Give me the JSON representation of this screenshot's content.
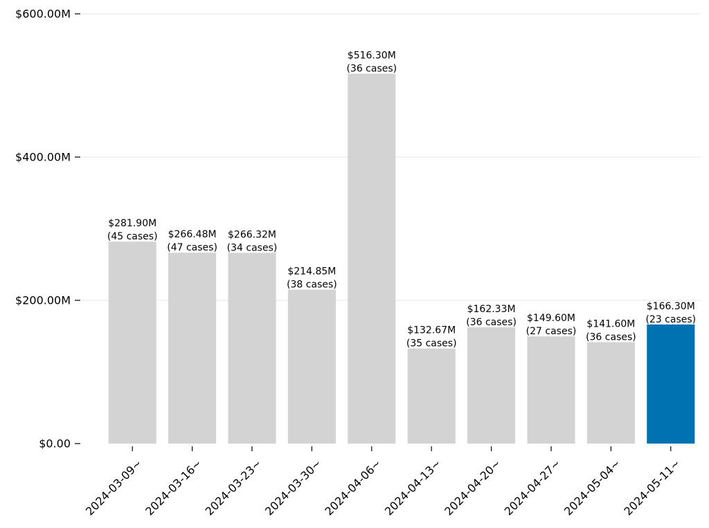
{
  "chart_data": {
    "type": "bar",
    "categories": [
      "2024-03-09~",
      "2024-03-16~",
      "2024-03-23~",
      "2024-03-30~",
      "2024-04-06~",
      "2024-04-13~",
      "2024-04-20~",
      "2024-04-27~",
      "2024-05-04~",
      "2024-05-11~"
    ],
    "values": [
      281.9,
      266.48,
      266.32,
      214.85,
      516.3,
      132.67,
      162.33,
      149.6,
      141.6,
      166.3
    ],
    "cases": [
      45,
      47,
      34,
      38,
      36,
      35,
      36,
      27,
      36,
      23
    ],
    "value_labels": [
      "$281.90M",
      "$266.48M",
      "$266.32M",
      "$214.85M",
      "$516.30M",
      "$132.67M",
      "$162.33M",
      "$149.60M",
      "$141.60M",
      "$166.30M"
    ],
    "case_labels": [
      "(45 cases)",
      "(47 cases)",
      "(34 cases)",
      "(38 cases)",
      "(36 cases)",
      "(35 cases)",
      "(36 cases)",
      "(27 cases)",
      "(36 cases)",
      "(23 cases)"
    ],
    "ylim": [
      0,
      600
    ],
    "yticks": [
      0,
      200,
      400,
      600
    ],
    "ytick_labels": [
      "$0.00",
      "$200.00M",
      "$400.00M",
      "$600.00M"
    ],
    "grid": "horizontal",
    "highlight_index": 9,
    "colors": {
      "bar": "#d3d3d3",
      "highlight": "#0072b2",
      "grid": "#e6e6e6",
      "tick": "#000000"
    },
    "title": "",
    "xlabel": "",
    "ylabel": ""
  }
}
